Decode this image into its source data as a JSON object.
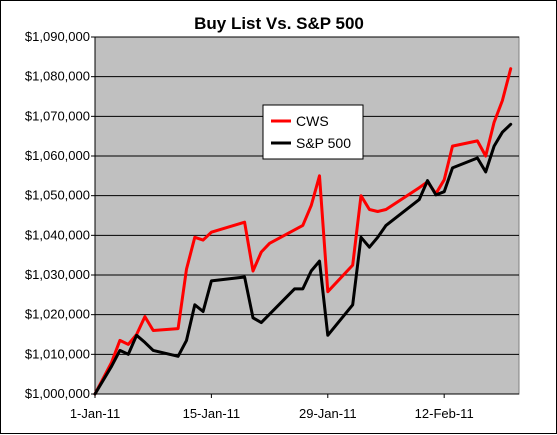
{
  "chart_data": {
    "type": "line",
    "title": "Buy List Vs. S&P 500",
    "xlabel": "",
    "ylabel": "",
    "xlim": [
      "2011-01-01",
      "2011-02-21"
    ],
    "ylim": [
      1000000,
      1090000
    ],
    "y_tick_step": 10000,
    "y_ticks": [
      "$1,000,000",
      "$1,010,000",
      "$1,020,000",
      "$1,030,000",
      "$1,040,000",
      "$1,050,000",
      "$1,060,000",
      "$1,070,000",
      "$1,080,000",
      "$1,090,000"
    ],
    "x_ticks": [
      {
        "date": "2011-01-01",
        "label": "1-Jan-11"
      },
      {
        "date": "2011-01-15",
        "label": "15-Jan-11"
      },
      {
        "date": "2011-01-29",
        "label": "29-Jan-11"
      },
      {
        "date": "2011-02-12",
        "label": "12-Feb-11"
      }
    ],
    "grid": true,
    "legend": "center",
    "plot_background": "#c0c0c0",
    "series": [
      {
        "name": "CWS",
        "color": "#ff0000",
        "points": [
          [
            "2011-01-01",
            1000000
          ],
          [
            "2011-01-03",
            1008000
          ],
          [
            "2011-01-04",
            1013500
          ],
          [
            "2011-01-05",
            1012500
          ],
          [
            "2011-01-06",
            1015000
          ],
          [
            "2011-01-07",
            1019500
          ],
          [
            "2011-01-08",
            1016000
          ],
          [
            "2011-01-11",
            1016500
          ],
          [
            "2011-01-12",
            1031500
          ],
          [
            "2011-01-13",
            1039500
          ],
          [
            "2011-01-14",
            1038800
          ],
          [
            "2011-01-15",
            1040800
          ],
          [
            "2011-01-19",
            1043300
          ],
          [
            "2011-01-20",
            1031000
          ],
          [
            "2011-01-21",
            1035800
          ],
          [
            "2011-01-22",
            1038000
          ],
          [
            "2011-01-26",
            1042500
          ],
          [
            "2011-01-27",
            1047500
          ],
          [
            "2011-01-28",
            1055000
          ],
          [
            "2011-01-29",
            1025800
          ],
          [
            "2011-02-01",
            1032500
          ],
          [
            "2011-02-02",
            1050000
          ],
          [
            "2011-02-03",
            1046500
          ],
          [
            "2011-02-04",
            1046000
          ],
          [
            "2011-02-05",
            1046500
          ],
          [
            "2011-02-09",
            1052000
          ],
          [
            "2011-02-10",
            1053500
          ],
          [
            "2011-02-11",
            1050500
          ],
          [
            "2011-02-12",
            1054000
          ],
          [
            "2011-02-13",
            1062500
          ],
          [
            "2011-02-16",
            1063800
          ],
          [
            "2011-02-17",
            1060000
          ],
          [
            "2011-02-18",
            1068500
          ],
          [
            "2011-02-19",
            1074000
          ],
          [
            "2011-02-20",
            1082000
          ]
        ]
      },
      {
        "name": "S&P 500",
        "color": "#000000",
        "points": [
          [
            "2011-01-01",
            1000000
          ],
          [
            "2011-01-03",
            1007000
          ],
          [
            "2011-01-04",
            1011000
          ],
          [
            "2011-01-05",
            1010000
          ],
          [
            "2011-01-06",
            1014800
          ],
          [
            "2011-01-07",
            1013000
          ],
          [
            "2011-01-08",
            1011000
          ],
          [
            "2011-01-11",
            1009500
          ],
          [
            "2011-01-12",
            1013500
          ],
          [
            "2011-01-13",
            1022500
          ],
          [
            "2011-01-14",
            1020800
          ],
          [
            "2011-01-15",
            1028500
          ],
          [
            "2011-01-19",
            1029500
          ],
          [
            "2011-01-20",
            1019200
          ],
          [
            "2011-01-21",
            1018000
          ],
          [
            "2011-01-25",
            1026500
          ],
          [
            "2011-01-26",
            1026500
          ],
          [
            "2011-01-27",
            1031000
          ],
          [
            "2011-01-28",
            1033500
          ],
          [
            "2011-01-29",
            1014800
          ],
          [
            "2011-02-01",
            1022500
          ],
          [
            "2011-02-02",
            1039500
          ],
          [
            "2011-02-03",
            1037000
          ],
          [
            "2011-02-04",
            1039500
          ],
          [
            "2011-02-05",
            1042500
          ],
          [
            "2011-02-09",
            1049000
          ],
          [
            "2011-02-10",
            1053800
          ],
          [
            "2011-02-11",
            1050200
          ],
          [
            "2011-02-12",
            1051000
          ],
          [
            "2011-02-13",
            1057000
          ],
          [
            "2011-02-16",
            1059500
          ],
          [
            "2011-02-17",
            1056000
          ],
          [
            "2011-02-18",
            1062500
          ],
          [
            "2011-02-19",
            1066000
          ],
          [
            "2011-02-20",
            1068000
          ]
        ]
      }
    ]
  }
}
